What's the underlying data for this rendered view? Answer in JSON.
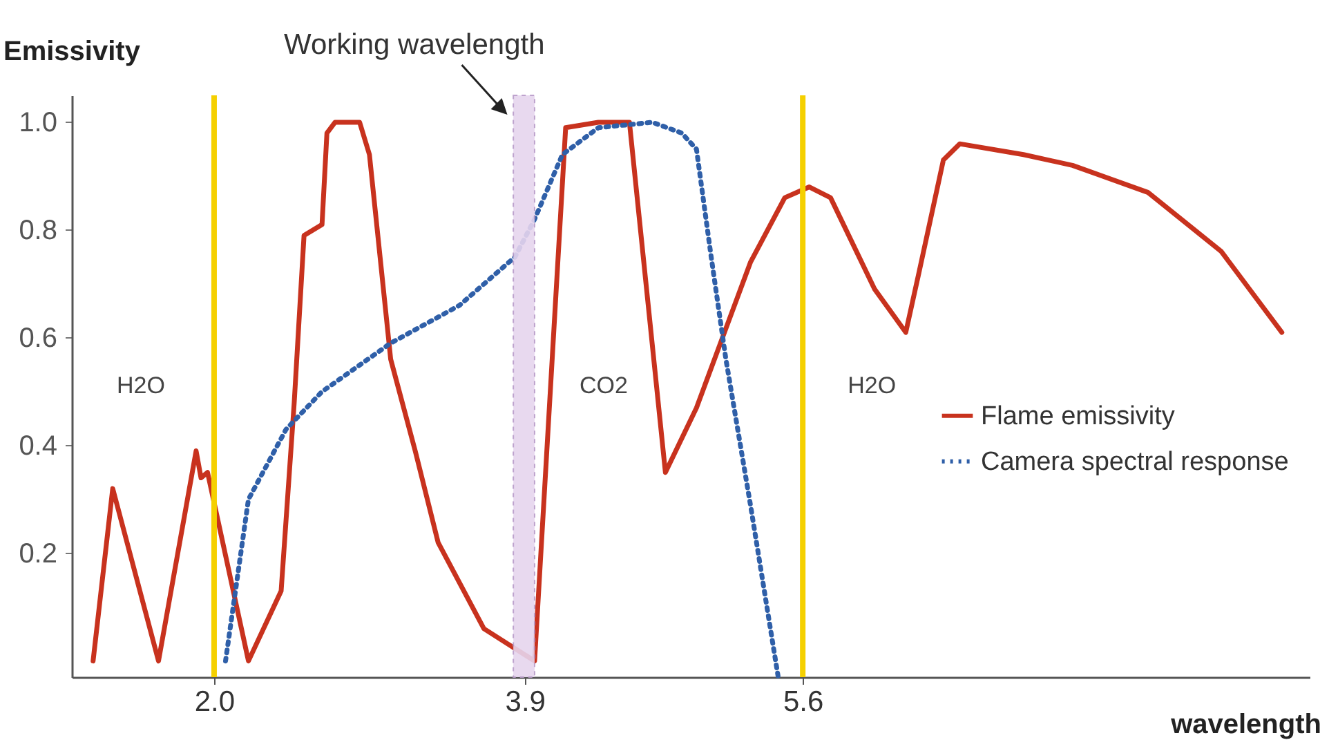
{
  "chart_data": {
    "type": "line",
    "ylabel": "Emissivity",
    "xlabel": "wavelength",
    "xlim": [
      1.13,
      8.7
    ],
    "ylim": [
      -0.03,
      1.05
    ],
    "xticks": [
      {
        "value": 2,
        "label": "2.0"
      },
      {
        "value": 3.9,
        "label": "3.9"
      },
      {
        "value": 5.6,
        "label": "5.6"
      }
    ],
    "yticks": [
      0.2,
      0.4,
      0.6,
      0.8,
      {
        "value": 1,
        "label": "1.0"
      }
    ],
    "grid": false,
    "legend": "right",
    "series": [
      {
        "name": "Flame emissivity",
        "color": "#c8321e",
        "line_style": "solid",
        "x": [
          1.26,
          1.38,
          1.66,
          1.89,
          1.92,
          1.96,
          2.21,
          2.41,
          2.49,
          2.55,
          2.66,
          2.69,
          2.74,
          2.89,
          2.95,
          3.08,
          3.23,
          3.37,
          3.65,
          3.96,
          4.15,
          4.35,
          4.54,
          4.76,
          4.95,
          5.28,
          5.49,
          5.64,
          5.77,
          6.04,
          6.23,
          6.31,
          6.46,
          6.56,
          6.95,
          7.25,
          7.71,
          8.16,
          8.53
        ],
        "values": [
          0,
          0.32,
          0,
          0.39,
          0.34,
          0.35,
          0,
          0.13,
          0.48,
          0.79,
          0.81,
          0.98,
          1.0,
          1.0,
          0.94,
          0.56,
          0.39,
          0.22,
          0.06,
          0,
          0.99,
          1.0,
          1.0,
          0.35,
          0.47,
          0.74,
          0.86,
          0.88,
          0.86,
          0.69,
          0.61,
          0.72,
          0.93,
          0.96,
          0.94,
          0.92,
          0.87,
          0.76,
          0.61
        ]
      },
      {
        "name": "Camera spectral response",
        "color": "#2f5fa8",
        "line_style": "dotted",
        "x": [
          2.07,
          2.21,
          2.44,
          2.66,
          3.08,
          3.5,
          3.84,
          3.96,
          4.13,
          4.35,
          4.68,
          4.86,
          4.95,
          5.04,
          5.13,
          5.28,
          5.45
        ],
        "values": [
          0,
          0.3,
          0.43,
          0.5,
          0.59,
          0.66,
          0.75,
          0.82,
          0.94,
          0.99,
          1.0,
          0.98,
          0.95,
          0.75,
          0.56,
          0.29,
          -0.03
        ]
      }
    ],
    "ref_lines": [
      {
        "axis": "x",
        "value": 2.0,
        "color": "#f5d000"
      },
      {
        "axis": "x",
        "value": 5.6,
        "color": "#f5d000"
      }
    ],
    "bands": [
      {
        "axis": "x",
        "from": 3.83,
        "to": 3.96,
        "label": "Working wavelength",
        "color": "#e6d5ee"
      }
    ],
    "annotations": [
      "H2O",
      "CO2",
      "H2O"
    ]
  }
}
